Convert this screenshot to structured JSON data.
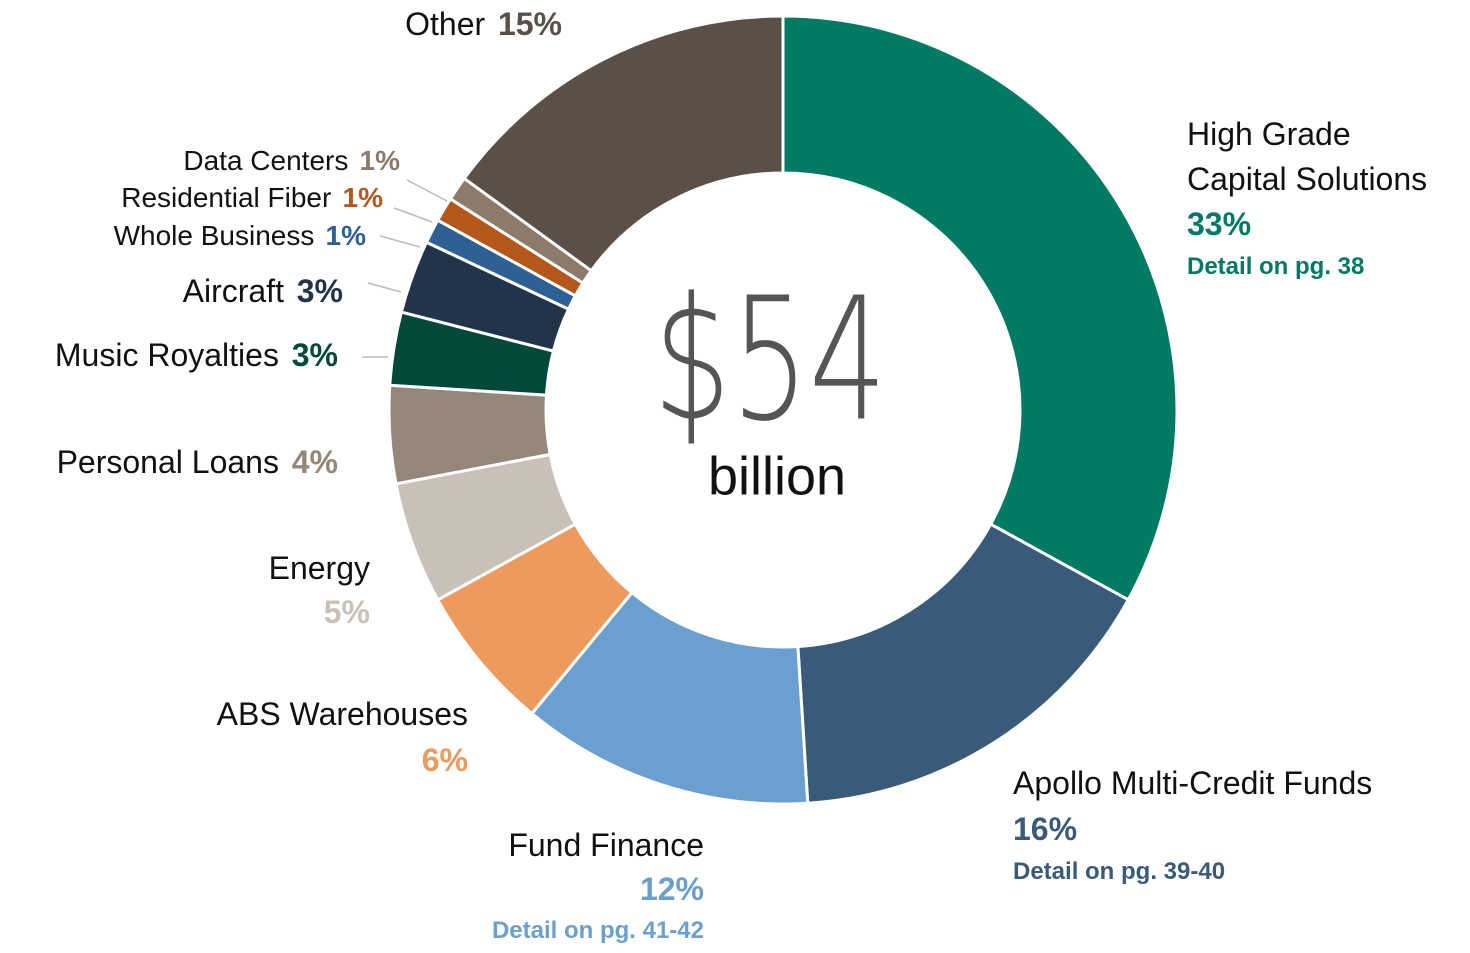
{
  "chart_data": {
    "type": "donut",
    "categories": [
      "High Grade\nCapital Solutions",
      "Apollo Multi-Credit Funds",
      "Fund Finance",
      "ABS Warehouses",
      "Energy",
      "Personal Loans",
      "Music Royalties",
      "Aircraft",
      "Whole Business",
      "Residential Fiber",
      "Data Centers",
      "Other"
    ],
    "values": [
      33,
      16,
      12,
      6,
      5,
      4,
      3,
      3,
      1,
      1,
      1,
      15
    ],
    "value_labels": [
      "33%",
      "16%",
      "12%",
      "6%",
      "5%",
      "4%",
      "3%",
      "3%",
      "1%",
      "1%",
      "1%",
      "15%"
    ],
    "details": [
      "Detail on pg. 38",
      "Detail on pg. 39-40",
      "Detail on pg. 41-42",
      null,
      null,
      null,
      null,
      null,
      null,
      null,
      null,
      null
    ],
    "colors": [
      "#007a62",
      "#3a5a7a",
      "#6a9fd0",
      "#ec9a5e",
      "#c9c0b8",
      "#948678",
      "#02493a",
      "#22344a",
      "#2e5f95",
      "#b5561a",
      "#8c7b6b",
      "#5a5048"
    ],
    "center_text": "$54",
    "center_subtext": "billion"
  }
}
